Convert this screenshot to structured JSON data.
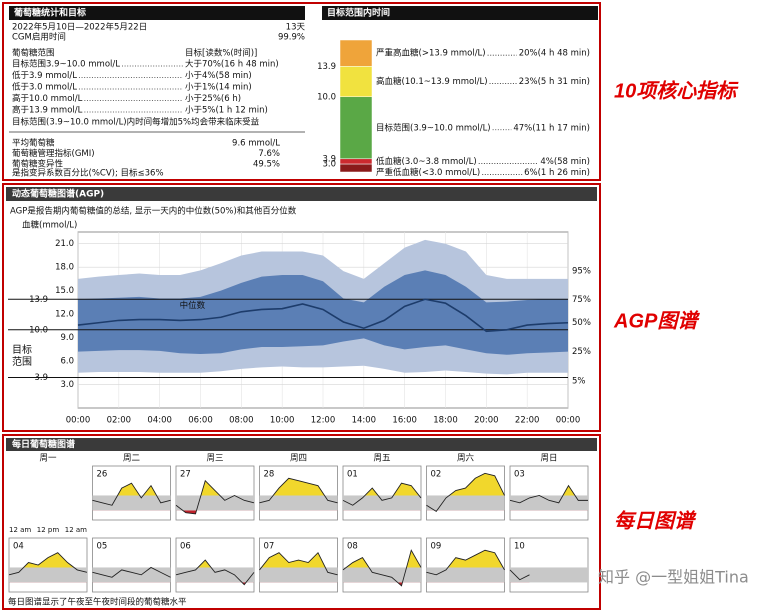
{
  "side_labels": [
    "10项核心指标",
    "AGP图谱",
    "每日图谱"
  ],
  "watermark": "知乎 @一型姐姐Tina",
  "stats": {
    "title": "葡萄糖统计和目标",
    "period": "2022年5月10日—2022年5月22日",
    "days": "13天",
    "cgm_label": "CGM启用时间",
    "cgm_value": "99.9%",
    "range_header": "葡萄糖范围",
    "target_header": "目标[读数%(时间)]",
    "targets": [
      {
        "label": "目标范围3.9~10.0 mmol/L",
        "target": "大于70%(16 h 48 min)"
      },
      {
        "label": "低于3.9 mmol/L",
        "target": "小于4%(58 min)"
      },
      {
        "label": "低于3.0 mmol/L",
        "target": "小于1%(14 min)"
      },
      {
        "label": "高于10.0 mmol/L",
        "target": "小于25%(6 h)"
      },
      {
        "label": "高于13.9 mmol/L",
        "target": "小于5%(1 h 12 min)"
      }
    ],
    "note": "目标范围(3.9~10.0 mmol/L)内时间每增加5%均会带来临床受益",
    "metrics": [
      {
        "label": "平均葡萄糖",
        "value": "9.6 mmol/L"
      },
      {
        "label": "葡萄糖管理指标(GMI)",
        "value": "7.6%"
      },
      {
        "label": "葡萄糖变异性",
        "value": "49.5%"
      }
    ],
    "cv_note": "是指变异系数百分比(%CV); 目标≤36%"
  },
  "tir": {
    "title": "目标范围内时间",
    "type": "stacked_bar",
    "segments": [
      {
        "name": "严重高血糖(>13.9 mmol/L)",
        "value": 20,
        "value_label": "20%(4 h 48 min)",
        "color": "#efa43a"
      },
      {
        "name": "高血糖(10.1~13.9 mmol/L)",
        "value": 23,
        "value_label": "23%(5 h 31 min)",
        "color": "#f1e23f"
      },
      {
        "name": "目标范围(3.9~10.0 mmol/L)",
        "value": 47,
        "value_label": "47%(11 h 17 min)",
        "color": "#5aa846"
      },
      {
        "name": "低血糖(3.0~3.8 mmol/L)",
        "value": 4,
        "value_label": "4%(58 min)",
        "color": "#cc2a2f"
      },
      {
        "name": "严重低血糖(<3.0 mmol/L)",
        "value": 6,
        "value_label": "6%(1 h 26 min)",
        "color": "#8a1b1b"
      }
    ],
    "boundary_labels": [
      "13.9",
      "10.0",
      "3.9",
      "3.0"
    ]
  },
  "agp": {
    "title": "动态葡萄糖图谱(AGP)",
    "subtitle": "AGP是报告期内葡萄糖值的总结, 显示一天内的中位数(50%)和其他百分位数",
    "y_label": "血糖(mmol/L)",
    "median_label": "中位数",
    "target_label": "目标范围",
    "chart": {
      "type": "line",
      "x": [
        0,
        1,
        2,
        3,
        4,
        5,
        6,
        7,
        8,
        9,
        10,
        11,
        12,
        13,
        14,
        15,
        16,
        17,
        18,
        19,
        20,
        21,
        22,
        23,
        24
      ],
      "series": [
        {
          "name": "95%",
          "color": "#b7c5dd",
          "values": [
            16.5,
            16.8,
            17.0,
            17.2,
            17.0,
            17.0,
            17.6,
            18.5,
            19.5,
            20.0,
            20.0,
            20.0,
            19.5,
            17.5,
            16.5,
            18.5,
            20.5,
            21.5,
            21.0,
            20.0,
            17.0,
            16.5,
            16.5,
            16.5,
            16.5
          ]
        },
        {
          "name": "75%",
          "color": "#5b7fb5",
          "values": [
            13.9,
            14.0,
            14.1,
            14.2,
            14.0,
            14.0,
            14.2,
            15.0,
            16.0,
            16.8,
            17.0,
            17.0,
            16.2,
            14.0,
            13.5,
            15.5,
            17.0,
            17.6,
            17.0,
            15.5,
            13.5,
            13.6,
            13.8,
            13.9,
            13.9
          ]
        },
        {
          "name": "50%",
          "color": "#1d3c6b",
          "values": [
            10.6,
            10.9,
            11.2,
            11.3,
            11.3,
            11.2,
            11.3,
            11.6,
            12.3,
            12.6,
            12.7,
            13.3,
            12.6,
            11.0,
            10.2,
            11.2,
            13.0,
            13.9,
            13.4,
            11.8,
            9.8,
            10.0,
            10.6,
            10.8,
            10.9
          ]
        },
        {
          "name": "25%",
          "color": "#5b7fb5",
          "values": [
            7.2,
            7.3,
            7.4,
            7.4,
            7.3,
            7.0,
            6.9,
            7.0,
            7.5,
            7.8,
            7.8,
            7.9,
            8.0,
            8.5,
            8.9,
            8.0,
            7.5,
            7.8,
            8.0,
            7.5,
            7.0,
            6.8,
            7.0,
            7.1,
            7.2
          ]
        },
        {
          "name": "5%",
          "color": "#b7c5dd",
          "values": [
            4.5,
            4.6,
            4.6,
            4.6,
            4.5,
            4.5,
            4.5,
            4.7,
            5.0,
            5.2,
            5.3,
            5.2,
            5.2,
            5.3,
            5.4,
            5.0,
            4.5,
            4.6,
            4.8,
            4.6,
            4.4,
            4.3,
            4.5,
            4.5,
            4.5
          ]
        }
      ],
      "xlim": [
        0,
        24
      ],
      "xticks": [
        {
          "value": 0,
          "label": "00:00"
        },
        {
          "value": 2,
          "label": "02:00"
        },
        {
          "value": 4,
          "label": "04:00"
        },
        {
          "value": 6,
          "label": "06:00"
        },
        {
          "value": 8,
          "label": "08:00"
        },
        {
          "value": 10,
          "label": "10:00"
        },
        {
          "value": 12,
          "label": "12:00"
        },
        {
          "value": 14,
          "label": "14:00"
        },
        {
          "value": 16,
          "label": "16:00"
        },
        {
          "value": 18,
          "label": "18:00"
        },
        {
          "value": 20,
          "label": "20:00"
        },
        {
          "value": 22,
          "label": "22:00"
        },
        {
          "value": 24,
          "label": "00:00"
        }
      ],
      "ylim": [
        0,
        22.5
      ],
      "yticks": [
        {
          "value": 3,
          "label": "3.0"
        },
        3.9,
        {
          "value": 6,
          "label": "6.0"
        },
        {
          "value": 9,
          "label": "9.0"
        },
        {
          "value": 10,
          "label": "10.0"
        },
        {
          "value": 12,
          "label": "12.0"
        },
        13.9,
        {
          "value": 15,
          "label": "15.0"
        },
        {
          "value": 18,
          "label": "18.0"
        },
        {
          "value": 21,
          "label": "21.0"
        }
      ],
      "target_lines": [
        3.9,
        10,
        13.9
      ],
      "grid": true
    }
  },
  "daily": {
    "title": "每日葡萄糖图谱",
    "weekdays": [
      "周一",
      "周二",
      "周三",
      "周四",
      "周五",
      "周六",
      "周日"
    ],
    "time_labels": [
      "12 am",
      "12 pm",
      "12 am"
    ],
    "footer": "每日图谱显示了午夜至午夜时间段的葡萄糖水平",
    "x": [
      0,
      3,
      6,
      9,
      12,
      15,
      18,
      21,
      24
    ],
    "ylim": [
      0,
      22
    ],
    "low": 3.9,
    "high": 10,
    "days": [
      {
        "label": "26",
        "values": [
          8,
          7,
          6,
          13,
          15,
          9,
          14,
          7,
          8
        ]
      },
      {
        "label": "27",
        "values": [
          6,
          3,
          2.5,
          16,
          12,
          8,
          10,
          8,
          7
        ]
      },
      {
        "label": "28",
        "values": [
          7,
          8,
          13,
          17,
          16,
          15,
          14,
          8,
          7
        ]
      },
      {
        "label": "01",
        "values": [
          8,
          6,
          9,
          13,
          8,
          9,
          15,
          14,
          9
        ]
      },
      {
        "label": "02",
        "values": [
          6,
          3.5,
          9,
          12,
          13,
          17,
          19,
          18,
          10
        ]
      },
      {
        "label": "03",
        "values": [
          8,
          7,
          9,
          10,
          8,
          7,
          14,
          8,
          8
        ]
      },
      {
        "label": "04",
        "values": [
          7,
          8,
          12,
          11,
          14,
          16,
          12,
          9,
          8
        ]
      },
      {
        "label": "05",
        "values": [
          8,
          7,
          6,
          9,
          8,
          7,
          10,
          8,
          6
        ]
      },
      {
        "label": "06",
        "values": [
          7,
          8,
          9,
          13,
          8,
          9,
          7,
          3,
          8
        ]
      },
      {
        "label": "07",
        "values": [
          9,
          14,
          16,
          12,
          13,
          12,
          16,
          8,
          7
        ]
      },
      {
        "label": "08",
        "values": [
          9,
          12,
          14,
          8,
          7,
          6,
          2.5,
          17,
          10
        ]
      },
      {
        "label": "09",
        "values": [
          8,
          7,
          9,
          14,
          13,
          15,
          17,
          16,
          9
        ]
      },
      {
        "label": "10",
        "values": [
          9,
          5,
          7,
          null,
          null,
          null,
          null,
          null,
          null
        ]
      }
    ]
  }
}
